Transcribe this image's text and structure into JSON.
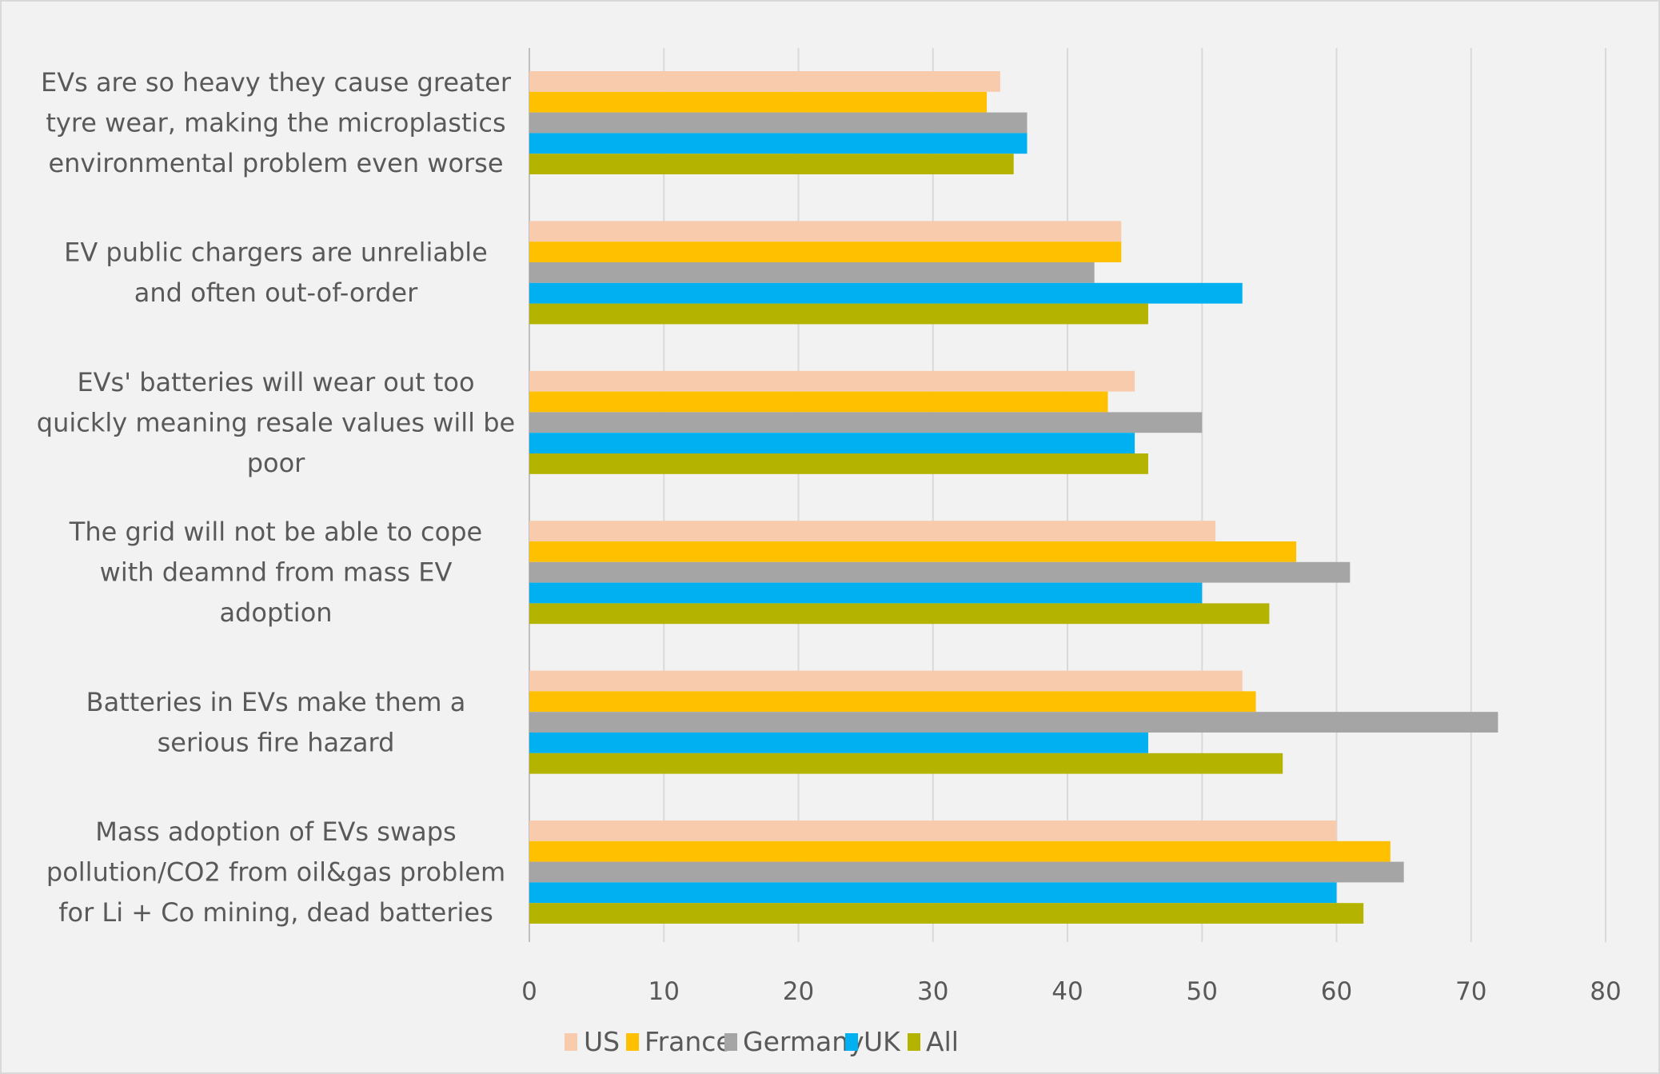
{
  "chart_data": {
    "type": "bar",
    "orientation": "horizontal",
    "title": "",
    "xlabel": "",
    "ylabel": "",
    "xlim": [
      0,
      80
    ],
    "xticks": [
      "0",
      "10",
      "20",
      "30",
      "40",
      "50",
      "60",
      "70",
      "80"
    ],
    "grid": true,
    "legend_position": "bottom",
    "categories": [
      [
        "EVs are so heavy they cause greater",
        "tyre wear, making the microplastics",
        "environmental problem even worse"
      ],
      [
        "EV public chargers are unreliable",
        "and often out-of-order"
      ],
      [
        "EVs' batteries will wear out too",
        "quickly meaning resale values will be",
        "poor"
      ],
      [
        "The grid will not be able to cope",
        "with deamnd from mass EV",
        "adoption"
      ],
      [
        "Batteries in EVs make them a",
        "serious fire hazard"
      ],
      [
        "Mass adoption of EVs swaps",
        "pollution/CO2 from oil&gas problem",
        "for Li + Co mining, dead batteries"
      ]
    ],
    "series": [
      {
        "name": "US",
        "color": "#f8cbad",
        "values": [
          35,
          44,
          45,
          51,
          53,
          60
        ]
      },
      {
        "name": "France",
        "color": "#ffc000",
        "values": [
          34,
          44,
          43,
          57,
          54,
          64
        ]
      },
      {
        "name": "Germany",
        "color": "#a5a5a5",
        "values": [
          37,
          42,
          50,
          61,
          72,
          65
        ]
      },
      {
        "name": "UK",
        "color": "#00b0f0",
        "values": [
          37,
          53,
          45,
          50,
          46,
          60
        ]
      },
      {
        "name": "All",
        "color": "#b4b400",
        "values": [
          36,
          46,
          46,
          55,
          56,
          62
        ]
      }
    ]
  }
}
